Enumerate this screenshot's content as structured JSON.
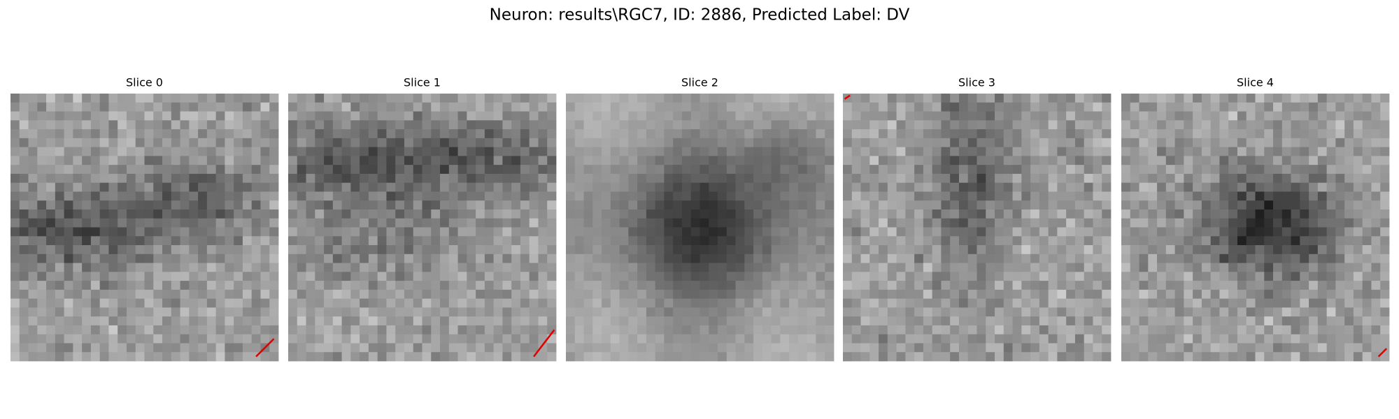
{
  "title": "Neuron: results\\RGC7, ID: 2886, Predicted Label: DV",
  "panels": [
    {
      "title": "Slice 0"
    },
    {
      "title": "Slice 1"
    },
    {
      "title": "Slice 2"
    },
    {
      "title": "Slice 3"
    },
    {
      "title": "Slice 4"
    }
  ]
}
